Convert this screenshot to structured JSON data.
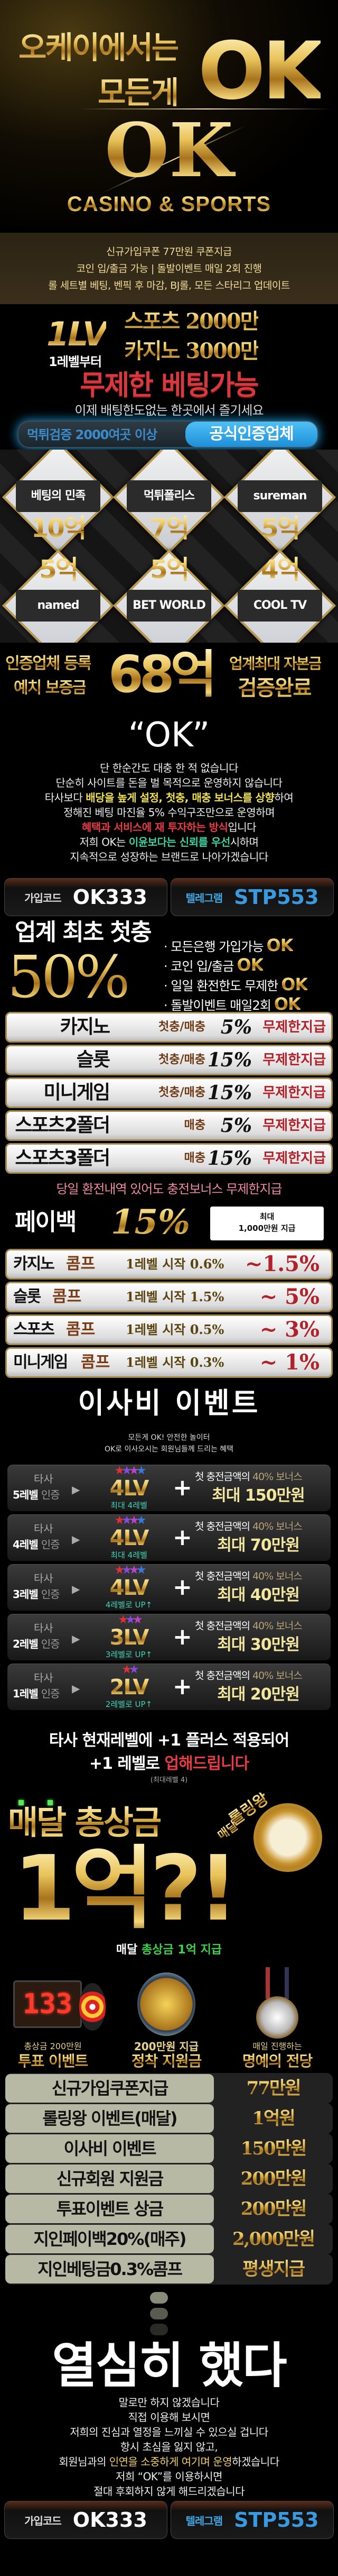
{
  "colors": {
    "gold": "#e9c35a",
    "red": "#e83c45",
    "telegram_blue": "#3a9ae0",
    "green": "#3fd24a",
    "teal": "#3fd2b5",
    "pill_border": "#a78b4a"
  },
  "hero": {
    "line1": "오케이에서는",
    "line2": "모든게",
    "ok": "OK",
    "logo": "OK",
    "tagline": "CASINO & SPORTS"
  },
  "info_band": {
    "lines": [
      "신규가입쿠폰 77만원 쿠폰지급",
      "코인 입/출금 가능 | 돌발이벤트 매일 2회 진행",
      "롤 세트별 베팅, 벤픽 후 마감, BJ롤, 모든 스타리그 업데이트"
    ]
  },
  "level": {
    "badge": "1LV",
    "sub": "1레벨부터",
    "sports": "스포츠 2000만",
    "casino": "카지노 3000만"
  },
  "unlimited": {
    "title": "무제한 베팅가능",
    "sub": "이제 배팅한도없는 한곳에서 즐기세요"
  },
  "verify": {
    "left": "먹튀검증 2000여곳 이상",
    "right": "공식인증업체"
  },
  "partners": [
    {
      "name": "베팅의 민족",
      "amount": "10억"
    },
    {
      "name": "먹튀폴리스",
      "amount": "7억"
    },
    {
      "name": "sureman",
      "amount": "5억"
    },
    {
      "name": "named",
      "amount": "5억"
    },
    {
      "name": "BET WORLD",
      "amount": "5억"
    },
    {
      "name": "COOL TV",
      "amount": "4억"
    }
  ],
  "deposit": {
    "left1": "인증업체 등록",
    "left2": "예치 보증금",
    "amount": "68억",
    "right1": "업계최대 자본금",
    "right2": "검증완료"
  },
  "quote": "“OK”",
  "intro": [
    [
      {
        "t": "단 한순간도 대충 한 적 없습니다"
      }
    ],
    [
      {
        "t": "단순히 사이트를 돈을 벌 목적으로 운영하지 않습니다"
      }
    ],
    [
      {
        "t": "타사보다  "
      },
      {
        "t": "배당을 높게 설정, 첫충, 매충 보너스를 상향",
        "c": "yellow"
      },
      {
        "t": "하여"
      }
    ],
    [
      {
        "t": "정해진 베팅 마진율 5% 수익구조만으로 운영하며"
      }
    ],
    [
      {
        "t": "혜택과 서비스에 재 투자하는 방식",
        "c": "red"
      },
      {
        "t": "입니다"
      }
    ],
    [
      {
        "t": "저희 OK는  "
      },
      {
        "t": "이윤보다는 신뢰를 우선",
        "c": "green"
      },
      {
        "t": "시하며"
      }
    ],
    [
      {
        "t": "지속적으로 성장하는 브랜드로 나아가겠습니다"
      }
    ]
  ],
  "codes": {
    "join_label": "가입코드",
    "join_code": "OK333",
    "telegram_label": "텔레그램",
    "telegram_id": "STP553"
  },
  "first_charge": {
    "title": "업계 최초 첫충",
    "percent": "50%",
    "ok": "OK",
    "bullets": [
      "모든은행 가입가능",
      "코인 입/출금",
      "일일 환전한도 무제한",
      "돌발이벤트 매일2회"
    ]
  },
  "bonus_rows": [
    {
      "game": "카지노",
      "type": "첫충/매충",
      "percent": "5%",
      "note": "무제한지급"
    },
    {
      "game": "슬롯",
      "type": "첫충/매충",
      "percent": "15%",
      "note": "무제한지급"
    },
    {
      "game": "미니게임",
      "type": "첫충/매충",
      "percent": "15%",
      "note": "무제한지급"
    },
    {
      "game": "스포츠2폴더",
      "type": "매충",
      "percent": "5%",
      "note": "무제한지급"
    },
    {
      "game": "스포츠3폴더",
      "type": "매충",
      "percent": "15%",
      "note": "무제한지급"
    }
  ],
  "bonus_note": "당일 환전내역 있어도 충전보너스 무제한지급",
  "payback": {
    "label": "페이백",
    "percent": "15%",
    "max_line1": "최대",
    "max_line2": "1,000만원 지급"
  },
  "comp_rows": [
    {
      "game": "카지노",
      "comp": "콤프",
      "start": "1레벨 시작 0.6%",
      "max": "~1.5%"
    },
    {
      "game": "슬롯",
      "comp": "콤프",
      "start": "1레벨 시작 1.5%",
      "max": "~ 5%"
    },
    {
      "game": "스포츠",
      "comp": "콤프",
      "start": "1레벨 시작 0.5%",
      "max": "~ 3%"
    },
    {
      "game": "미니게임",
      "comp": "콤프",
      "start": "1레벨 시작 0.3%",
      "max": "~ 1%"
    }
  ],
  "moving": {
    "title": "이사비 이벤트",
    "sub1": "모든게 OK! 안전한 놀이터",
    "sub2": "OK로 이사오시는 회원님들께 드리는 혜택",
    "rows": [
      {
        "other": "타사",
        "level": "5레벨",
        "cert": "인증",
        "stars": 4,
        "lv": "4LV",
        "lv_note": "최대 4레벨",
        "bonus_pre": "첫 충전금액의",
        "bonus_pct": "40% 보너스",
        "max": "최대 150만원"
      },
      {
        "other": "타사",
        "level": "4레벨",
        "cert": "인증",
        "stars": 4,
        "lv": "4LV",
        "lv_note": "최대 4레벨",
        "bonus_pre": "첫 충전금액의",
        "bonus_pct": "40% 보너스",
        "max": "최대 70만원"
      },
      {
        "other": "타사",
        "level": "3레벨",
        "cert": "인증",
        "stars": 4,
        "lv": "4LV",
        "lv_note": "4레벨로 UP↑",
        "bonus_pre": "첫 충전금액의",
        "bonus_pct": "40% 보너스",
        "max": "최대 40만원"
      },
      {
        "other": "타사",
        "level": "2레벨",
        "cert": "인증",
        "stars": 3,
        "lv": "3LV",
        "lv_note": "3레벨로 UP↑",
        "bonus_pre": "첫 충전금액의",
        "bonus_pct": "40% 보너스",
        "max": "최대 30만원"
      },
      {
        "other": "타사",
        "level": "1레벨",
        "cert": "인증",
        "stars": 2,
        "lv": "2LV",
        "lv_note": "2레벨로 UP↑",
        "bonus_pre": "첫 충전금액의",
        "bonus_pct": "40% 보너스",
        "max": "최대 20만원"
      }
    ]
  },
  "plus": {
    "line1": "타사 현재레벨에 +1 플러스 적용되어",
    "line2a": "+1 레벨로 ",
    "line2b": "업해드립니다",
    "note": "(최대레벨 4)"
  },
  "monthly": {
    "title": "매달 총상금",
    "big": "1억?!",
    "wheel_label": "롤링왕",
    "wheel_label2": "매달",
    "sub_a": "매달 ",
    "sub_b": "총상금 1억 지급"
  },
  "events": [
    {
      "line1": "총상금 200만원",
      "line2": "투표 이벤트",
      "scoreboard": "133"
    },
    {
      "line1": "200만원 지급",
      "line2": "정착 지원금"
    },
    {
      "line1": "매일 진행하는",
      "line2": "명예의 전당"
    }
  ],
  "summary": [
    {
      "k": "신규가입쿠폰지급",
      "v": "77만원"
    },
    {
      "k": "롤링왕 이벤트(매달)",
      "v": "1억원"
    },
    {
      "k": "이사비 이벤트",
      "v": "150만원"
    },
    {
      "k": "신규회원 지원금",
      "v": "200만원"
    },
    {
      "k": "투표이벤트 상금",
      "v": "200만원"
    },
    {
      "k": "지인페이백20%(매주)",
      "v": "2,000만원"
    },
    {
      "k": "지인베팅금0.3%콤프",
      "v": "평생지급"
    }
  ],
  "closing": {
    "title": "열심히 했다",
    "lines": [
      [
        {
          "t": "말로만 하지 않겠습니다"
        }
      ],
      [
        {
          "t": "직접 이용해 보시면"
        }
      ],
      [
        {
          "t": "저희의 진심과 열정을 느끼실 수 있으실 겁니다"
        }
      ],
      [
        {
          "t": "항시 초심을 잃지 않고,"
        }
      ],
      [
        {
          "t": "회원님과의 "
        },
        {
          "t": "인연을 소중하게 여기며 운영",
          "c": "gold"
        },
        {
          "t": "하겠습니다"
        }
      ],
      [
        {
          "t": "저희 “OK”를 이용하시면"
        }
      ],
      [
        {
          "t": "절대 후회하지 않게 해드리겠습니다"
        }
      ]
    ]
  }
}
